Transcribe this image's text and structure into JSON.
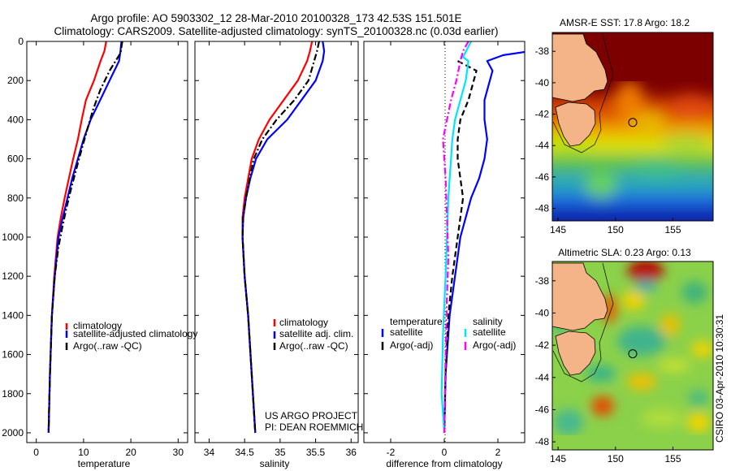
{
  "header": {
    "line1": "Argo profile: AO 5903302_12 28-Mar-2010 20100328_173 42.53S 151.501E",
    "line2": "Climatology: CARS2009. Satellite-adjusted climatology: synTS_20100328.nc (0.03d earlier)"
  },
  "credit": {
    "project": "US ARGO PROJECT",
    "pi": "PI: DEAN ROEMMICH",
    "side": "CSIRO 03-Apr-2010 10:30:31"
  },
  "colors": {
    "climatology": "#ff0000",
    "satellite": "#0000ff",
    "argo": "#000000",
    "temp_diff_argo": "#000000",
    "sal_sat": "#00e5ff",
    "sal_argo": "#ff00ff",
    "land": "#f4b487"
  },
  "chart_data": [
    {
      "type": "line",
      "id": "temperature",
      "xlabel": "temperature",
      "ylabel": "",
      "xlim": [
        -2,
        32
      ],
      "ylim": [
        2050,
        0
      ],
      "xticks": [
        0,
        10,
        20,
        30
      ],
      "yticks": [
        0,
        200,
        400,
        600,
        800,
        1000,
        1200,
        1400,
        1600,
        1800,
        2000
      ],
      "legend": [
        "climatology",
        "satellite-adjusted climatology",
        "Argo(..raw -QC)"
      ],
      "legend_position": "lower-right",
      "series": [
        {
          "name": "climatology",
          "color": "#ff0000",
          "dash": "solid",
          "x": [
            14.8,
            14.4,
            13.6,
            12.2,
            10.5,
            9.6,
            8.8,
            7.8,
            6.9,
            6.0,
            5.2,
            4.5,
            3.8,
            3.3,
            2.9,
            2.6
          ],
          "y": [
            0,
            50,
            100,
            200,
            300,
            400,
            500,
            600,
            700,
            800,
            900,
            1000,
            1200,
            1400,
            1700,
            2000
          ]
        },
        {
          "name": "satellite-adjusted climatology",
          "color": "#0000ff",
          "dash": "solid",
          "x": [
            18.0,
            17.8,
            17.5,
            15.5,
            13.5,
            11.5,
            10.0,
            8.8,
            7.6,
            6.6,
            5.6,
            4.7,
            3.9,
            3.3,
            2.9,
            2.6
          ],
          "y": [
            0,
            50,
            100,
            200,
            300,
            400,
            500,
            600,
            700,
            800,
            900,
            1000,
            1200,
            1400,
            1700,
            2000
          ]
        },
        {
          "name": "Argo(..raw -QC)",
          "color": "#000000",
          "dash": "dashdot",
          "x": [
            18.2,
            17.8,
            15.5,
            13.5,
            12.0,
            10.8,
            9.6,
            8.5,
            7.4,
            6.4,
            5.5,
            4.7,
            3.9,
            3.3,
            2.9,
            2.6
          ],
          "y": [
            0,
            60,
            150,
            250,
            350,
            450,
            550,
            650,
            750,
            850,
            950,
            1050,
            1200,
            1400,
            1700,
            2000
          ]
        }
      ]
    },
    {
      "type": "line",
      "id": "salinity",
      "xlabel": "salinity",
      "ylabel": "",
      "xlim": [
        33.8,
        36.1
      ],
      "ylim": [
        2050,
        0
      ],
      "xticks": [
        34,
        34.5,
        35,
        35.5,
        36
      ],
      "legend": [
        "climatology",
        "satellite adj. clim.",
        "Argo(..raw -QC)"
      ],
      "legend_position": "lower-right",
      "series": [
        {
          "name": "climatology",
          "color": "#ff0000",
          "dash": "solid",
          "x": [
            35.45,
            35.42,
            35.38,
            35.25,
            35.05,
            34.85,
            34.7,
            34.6,
            34.55,
            34.5,
            34.47,
            34.47,
            34.5,
            34.55,
            34.6,
            34.65
          ],
          "y": [
            0,
            50,
            100,
            200,
            300,
            400,
            500,
            600,
            700,
            800,
            900,
            1000,
            1200,
            1400,
            1700,
            2000
          ]
        },
        {
          "name": "satellite adj. clim.",
          "color": "#0000ff",
          "dash": "solid",
          "x": [
            35.6,
            35.62,
            35.6,
            35.5,
            35.3,
            35.1,
            34.82,
            34.66,
            34.58,
            34.52,
            34.48,
            34.47,
            34.5,
            34.55,
            34.6,
            34.65
          ],
          "y": [
            0,
            50,
            100,
            200,
            300,
            400,
            500,
            600,
            700,
            800,
            900,
            1000,
            1200,
            1400,
            1700,
            2000
          ]
        },
        {
          "name": "Argo(..raw -QC)",
          "color": "#000000",
          "dash": "dashdot",
          "x": [
            35.55,
            35.52,
            35.48,
            35.4,
            35.2,
            34.95,
            34.75,
            34.63,
            34.57,
            34.52,
            34.48,
            34.47,
            34.5,
            34.55,
            34.6,
            34.65
          ],
          "y": [
            0,
            50,
            100,
            200,
            300,
            400,
            500,
            600,
            700,
            800,
            900,
            1000,
            1200,
            1400,
            1700,
            2000
          ]
        }
      ]
    },
    {
      "type": "line",
      "id": "difference",
      "xlabel": "difference from climatology",
      "ylabel": "",
      "xlim": [
        -3,
        3
      ],
      "ylim": [
        2050,
        0
      ],
      "xticks": [
        -2,
        0,
        2
      ],
      "legend_temperature_title": "temperature",
      "legend_salinity_title": "salinity",
      "legend": [
        "satellite",
        "Argo(-adj)",
        "satellite",
        "Argo(-adj)"
      ],
      "series": [
        {
          "name": "satellite",
          "group": "temperature",
          "color": "#0000ff",
          "dash": "solid",
          "x": [
            3.2,
            2.2,
            1.6,
            1.8,
            1.5,
            1.5,
            1.6,
            1.5,
            1.3,
            1.0,
            0.8,
            0.6,
            0.4,
            0.2,
            0.05,
            0.0
          ],
          "y": [
            50,
            70,
            100,
            150,
            300,
            400,
            500,
            600,
            700,
            800,
            900,
            1000,
            1200,
            1400,
            1700,
            2000
          ]
        },
        {
          "name": "Argo(-adj)",
          "group": "temperature",
          "color": "#000000",
          "dash": "dashed",
          "x": [
            0.5,
            1.2,
            1.1,
            0.9,
            0.6,
            0.5,
            0.5,
            0.6,
            0.7,
            0.6,
            0.5,
            0.4,
            0.3,
            0.15,
            0.05,
            0.0
          ],
          "y": [
            100,
            150,
            200,
            300,
            400,
            500,
            600,
            700,
            800,
            900,
            1000,
            1100,
            1200,
            1400,
            1700,
            2000
          ]
        },
        {
          "name": "satellite",
          "group": "salinity",
          "color": "#00e5ff",
          "dash": "solid",
          "x": [
            1.0,
            0.7,
            0.9,
            0.8,
            0.6,
            0.4,
            0.3,
            0.25,
            0.2,
            0.15,
            0.1,
            0.05,
            -0.05,
            -0.1,
            0.0
          ],
          "y": [
            0,
            80,
            100,
            200,
            300,
            400,
            500,
            600,
            700,
            800,
            1000,
            1200,
            1500,
            1800,
            2000
          ]
        },
        {
          "name": "Argo(-adj)",
          "group": "salinity",
          "color": "#ff00ff",
          "dash": "dashdot",
          "x": [
            0.9,
            0.7,
            0.6,
            0.45,
            0.25,
            0.1,
            -0.05,
            0.0,
            0.05,
            0.1,
            0.15,
            0.1,
            0.05,
            0.0
          ],
          "y": [
            0,
            50,
            100,
            200,
            300,
            400,
            500,
            600,
            700,
            900,
            1100,
            1300,
            1600,
            2000
          ]
        }
      ]
    },
    {
      "type": "heatmap",
      "id": "sst_map",
      "title": "AMSR-E SST: 17.8 Argo: 18.2",
      "xlim": [
        144.5,
        158.5
      ],
      "ylim": [
        -48.8,
        -36.8
      ],
      "xticks": [
        145,
        150,
        155
      ],
      "yticks": [
        -38,
        -40,
        -42,
        -44,
        -46,
        -48
      ],
      "marker": {
        "lon": 151.5,
        "lat": -42.53
      }
    },
    {
      "type": "heatmap",
      "id": "sla_map",
      "title": "Altimetric SLA: 0.23 Argo: 0.13",
      "xlim": [
        144.5,
        158.5
      ],
      "ylim": [
        -48.5,
        -36.8
      ],
      "xticks": [
        145,
        150,
        155
      ],
      "yticks": [
        -38,
        -40,
        -42,
        -44,
        -46,
        -48
      ],
      "marker": {
        "lon": 151.5,
        "lat": -42.53
      }
    }
  ]
}
